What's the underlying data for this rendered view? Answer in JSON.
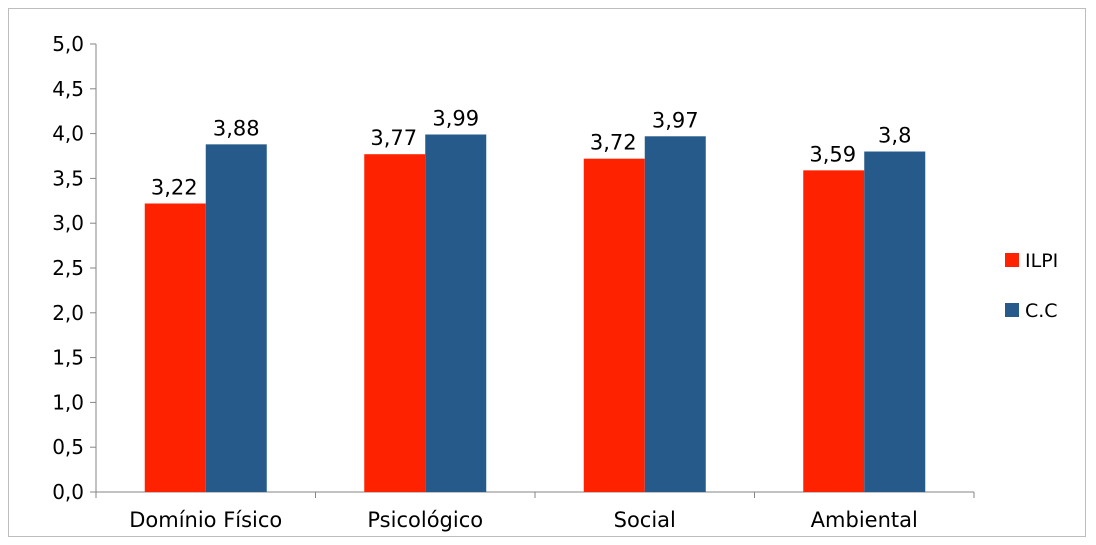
{
  "chart_data": {
    "type": "bar",
    "title": "",
    "xlabel": "",
    "ylabel": "",
    "categories": [
      "Domínio Físico",
      "Psicológico",
      "Social",
      "Ambiental"
    ],
    "series": [
      {
        "name": "ILPI",
        "values": [
          3.22,
          3.77,
          3.72,
          3.59
        ],
        "labels": [
          "3,22",
          "3,77",
          "3,72",
          "3,59"
        ],
        "color": "#ff2200"
      },
      {
        "name": "C.C",
        "values": [
          3.88,
          3.99,
          3.97,
          3.8
        ],
        "labels": [
          "3,88",
          "3,99",
          "3,97",
          "3,8"
        ],
        "color": "#265a8a"
      }
    ],
    "ylim": [
      0,
      5
    ],
    "yticks": [
      0,
      0.5,
      1,
      1.5,
      2,
      2.5,
      3,
      3.5,
      4,
      4.5,
      5
    ],
    "ytick_labels": [
      "0,0",
      "0,5",
      "1,0",
      "1,5",
      "2,0",
      "2,5",
      "3,0",
      "3,5",
      "4,0",
      "4,5",
      "5,0"
    ],
    "grid": false,
    "legend": "right"
  }
}
